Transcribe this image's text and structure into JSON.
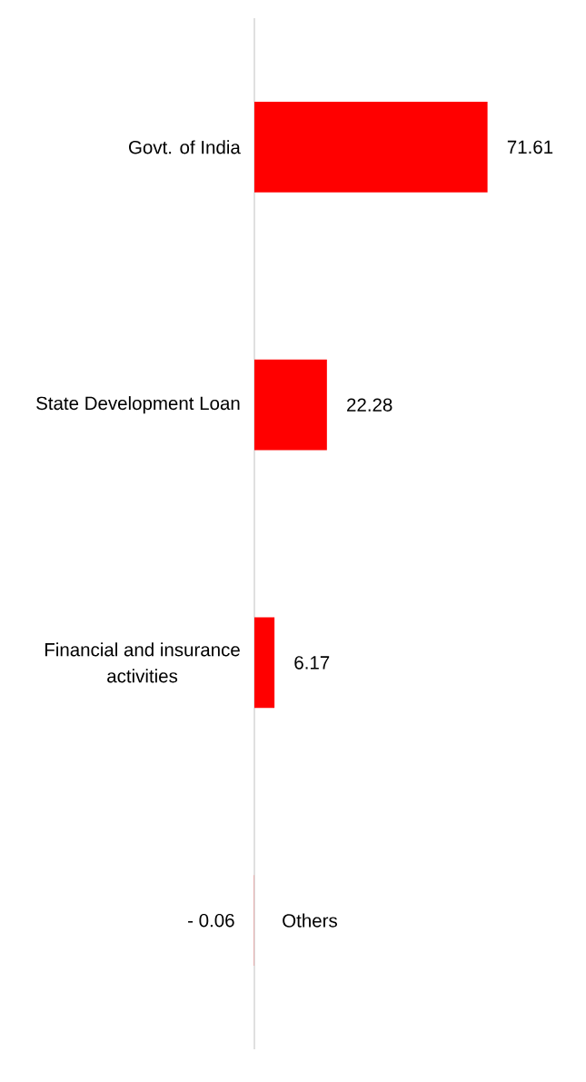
{
  "chart_data": {
    "type": "bar",
    "orientation": "horizontal",
    "categories": [
      "Govt. of India",
      "State Development Loan",
      "Financial and insurance activities",
      "Others"
    ],
    "values": [
      71.61,
      22.28,
      6.17,
      -0.06
    ],
    "color": "#ff0000",
    "value_labels": [
      "71.61",
      "22.28",
      "6.17",
      "- 0.06"
    ]
  }
}
